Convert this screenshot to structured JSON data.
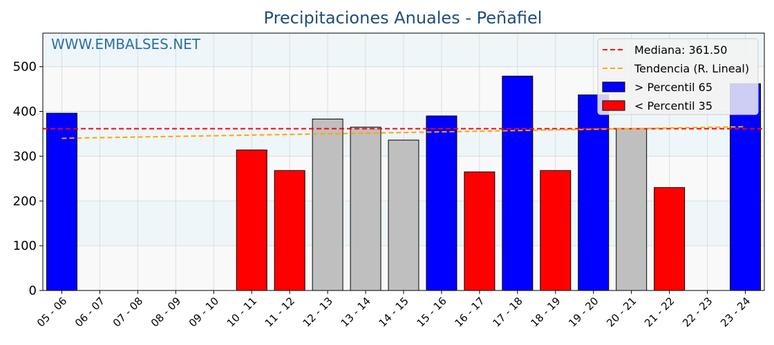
{
  "chart_data": {
    "type": "bar",
    "title": "Precipitaciones Anuales - Peñafiel",
    "watermark": "WWW.EMBALSES.NET",
    "xlabel": "",
    "ylabel": "",
    "ylim": [
      0,
      575
    ],
    "yticks": [
      0,
      100,
      200,
      300,
      400,
      500
    ],
    "grid": true,
    "legend_position": "top-right",
    "categories": [
      "05 - 06",
      "06 - 07",
      "07 - 08",
      "08 - 09",
      "09 - 10",
      "10 - 11",
      "11 - 12",
      "12 - 13",
      "13 - 14",
      "14 - 15",
      "15 - 16",
      "16 - 17",
      "17 - 18",
      "18 - 19",
      "19 - 20",
      "20 - 21",
      "21 - 22",
      "22 - 23",
      "23 - 24"
    ],
    "values": [
      396,
      null,
      null,
      null,
      null,
      314,
      268,
      383,
      365,
      336,
      390,
      265,
      479,
      268,
      437,
      362,
      230,
      null,
      462
    ],
    "bar_class": [
      "high",
      null,
      null,
      null,
      null,
      "low",
      "low",
      "mid",
      "mid",
      "mid",
      "high",
      "low",
      "high",
      "low",
      "high",
      "mid",
      "low",
      null,
      "high"
    ],
    "median": 361.5,
    "trend": {
      "start": 340,
      "end": 366
    },
    "colors": {
      "high": "#0000ff",
      "low": "#ff0000",
      "mid": "#bfbfbf",
      "median_line": "#ff0000",
      "trend_line": "#ffa500",
      "title": "#1f4e79",
      "watermark": "#2e6fa0",
      "band_light": "#eef6f9",
      "band_white": "#f9f9f9"
    },
    "legend": [
      {
        "key": "median",
        "label": "Mediana: 361.50"
      },
      {
        "key": "trend",
        "label": "Tendencia (R. Lineal)"
      },
      {
        "key": "high",
        "label": " > Percentil 65"
      },
      {
        "key": "low",
        "label": " < Percentil 35"
      }
    ]
  }
}
